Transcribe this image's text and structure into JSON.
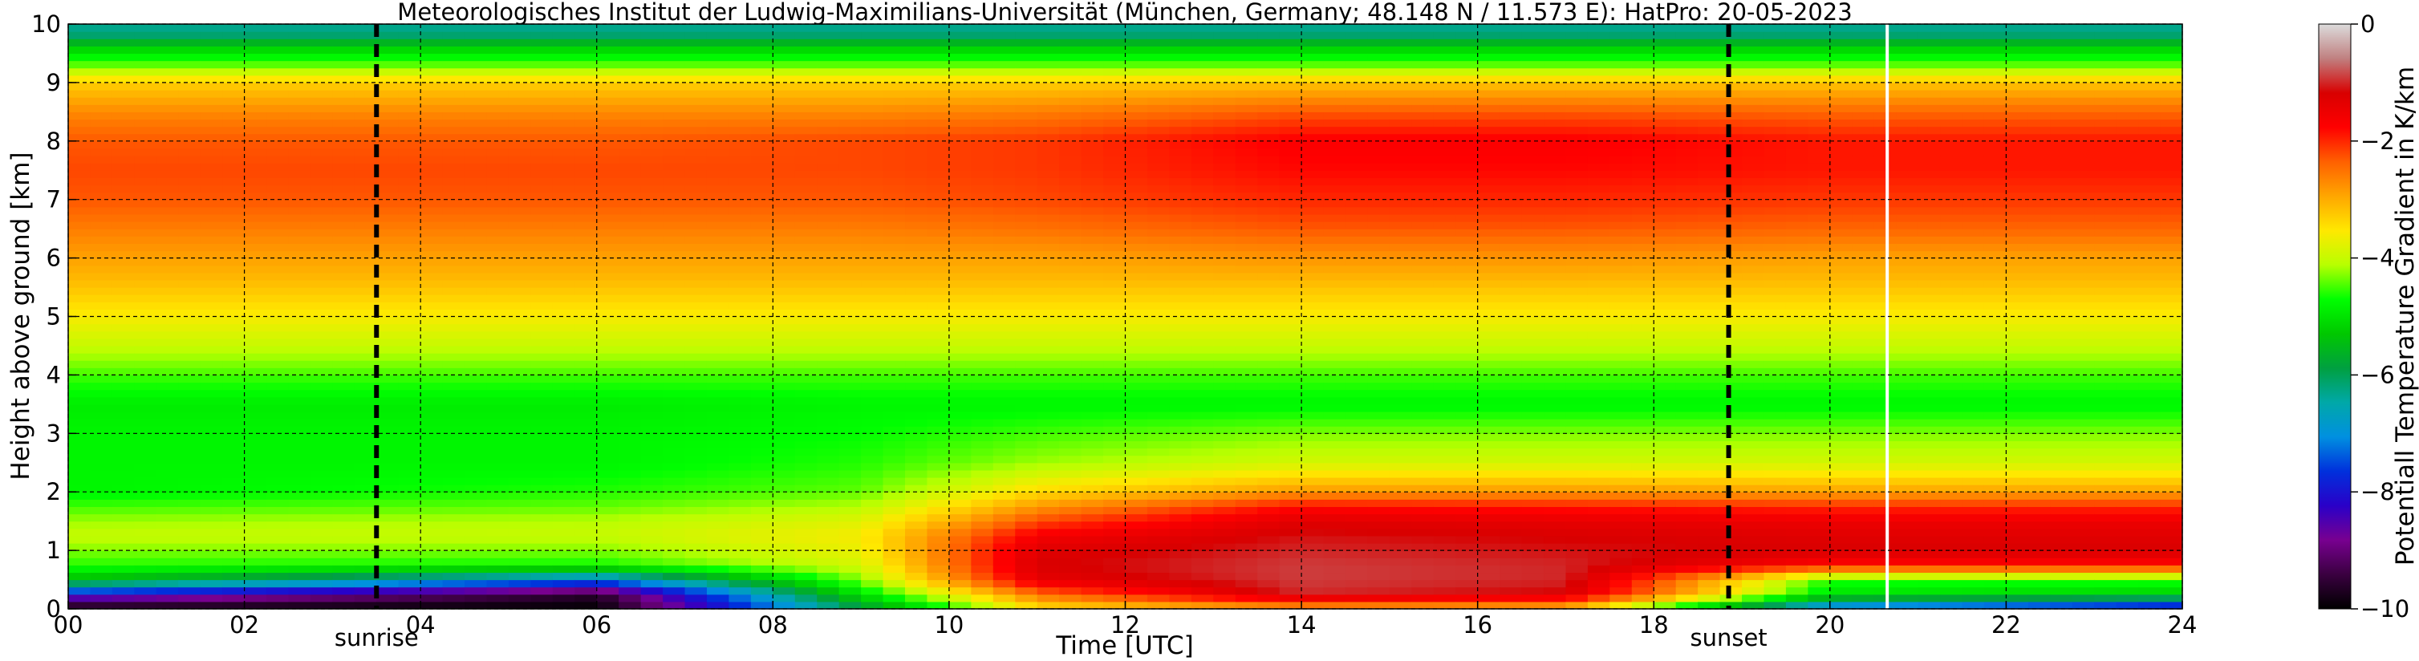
{
  "chart_data": {
    "type": "heatmap",
    "title": "Meteorologisches Institut der Ludwig-Maximilians-Universität (München, Germany; 48.148 N / 11.573 E):    HatPro: 20-05-2023",
    "xlabel": "Time [UTC]",
    "ylabel": "Height above ground [km]",
    "xlim": [
      0,
      24
    ],
    "ylim": [
      0,
      10
    ],
    "x_ticks": [
      0,
      2,
      4,
      6,
      8,
      10,
      12,
      14,
      16,
      18,
      20,
      22,
      24
    ],
    "x_tick_labels": [
      "00",
      "02",
      "04",
      "06",
      "08",
      "10",
      "12",
      "14",
      "16",
      "18",
      "20",
      "22",
      "24"
    ],
    "y_ticks": [
      0,
      1,
      2,
      3,
      4,
      5,
      6,
      7,
      8,
      9,
      10
    ],
    "y_tick_labels": [
      "0",
      "1",
      "2",
      "3",
      "4",
      "5",
      "6",
      "7",
      "8",
      "9",
      "10"
    ],
    "grid": true,
    "colorbar": {
      "label": "Potentiall Temperature Gradient in K/km",
      "range": [
        -10,
        0
      ],
      "ticks": [
        0,
        -2,
        -4,
        -6,
        -8,
        -10
      ],
      "tick_labels": [
        "0",
        "−2",
        "−4",
        "−6",
        "−8",
        "−10"
      ],
      "colors": [
        "#000000",
        "#3a0040",
        "#780090",
        "#2a00c8",
        "#0030dc",
        "#0090e0",
        "#00a8a8",
        "#00a040",
        "#00c800",
        "#00ff00",
        "#b8ff00",
        "#ffe800",
        "#ffa600",
        "#ff6000",
        "#ff0000",
        "#d80000",
        "#c08080",
        "#dcdcdc"
      ]
    },
    "events": [
      {
        "label": "sunrise",
        "time": 3.5
      },
      {
        "label": "sunset",
        "time": 18.85
      }
    ],
    "gap_time": 20.65,
    "profile_heights": [
      0,
      0.25,
      0.5,
      0.75,
      1.0,
      1.25,
      1.5,
      1.75,
      2.0,
      2.5,
      3.0,
      3.5,
      4.0,
      4.5,
      5.0,
      5.5,
      6.0,
      6.5,
      7.0,
      7.5,
      8.0,
      8.5,
      9.0,
      9.3,
      9.6,
      9.85,
      10.0
    ],
    "profiles": [
      {
        "time": 0,
        "values": [
          -10,
          -8,
          -5.4,
          -4.6,
          -4.3,
          -4.0,
          -4.2,
          -4.5,
          -4.8,
          -4.8,
          -4.8,
          -4.9,
          -4.5,
          -4.0,
          -3.6,
          -3.2,
          -2.9,
          -2.6,
          -2.3,
          -2.2,
          -2.3,
          -2.7,
          -3.3,
          -4.4,
          -5.2,
          -6.3,
          -6.3
        ]
      },
      {
        "time": 6,
        "values": [
          -10,
          -9.6,
          -7.2,
          -4.7,
          -4.3,
          -4.0,
          -4.1,
          -4.4,
          -4.6,
          -4.8,
          -4.8,
          -4.9,
          -4.5,
          -4.0,
          -3.6,
          -3.2,
          -2.9,
          -2.6,
          -2.3,
          -2.2,
          -2.3,
          -2.7,
          -3.3,
          -4.4,
          -5.2,
          -6.3,
          -6.3
        ]
      },
      {
        "time": 9,
        "values": [
          -6.0,
          -5.0,
          -4.3,
          -3.9,
          -3.7,
          -3.6,
          -3.8,
          -4.1,
          -4.4,
          -4.6,
          -4.7,
          -4.8,
          -4.5,
          -4.0,
          -3.6,
          -3.2,
          -2.9,
          -2.6,
          -2.3,
          -2.2,
          -2.2,
          -2.7,
          -3.3,
          -4.4,
          -5.2,
          -6.3,
          -6.3
        ]
      },
      {
        "time": 11,
        "values": [
          -3.5,
          -2.5,
          -1.4,
          -1.2,
          -1.3,
          -1.6,
          -2.2,
          -2.8,
          -3.4,
          -4.2,
          -4.5,
          -4.8,
          -4.5,
          -4.0,
          -3.6,
          -3.2,
          -2.9,
          -2.5,
          -2.2,
          -2.1,
          -2.1,
          -2.6,
          -3.3,
          -4.4,
          -5.2,
          -6.3,
          -6.3
        ]
      },
      {
        "time": 14,
        "values": [
          -3.0,
          -1.0,
          -0.9,
          -0.9,
          -1.0,
          -1.1,
          -1.3,
          -1.8,
          -2.8,
          -3.9,
          -4.3,
          -4.8,
          -4.5,
          -4.0,
          -3.6,
          -3.2,
          -2.8,
          -2.3,
          -2.0,
          -1.8,
          -1.7,
          -2.3,
          -3.2,
          -4.4,
          -5.2,
          -6.3,
          -6.3
        ]
      },
      {
        "time": 17,
        "values": [
          -3.2,
          -1.2,
          -1.0,
          -1.0,
          -1.1,
          -1.2,
          -1.4,
          -1.9,
          -2.8,
          -3.9,
          -4.3,
          -4.8,
          -4.5,
          -4.0,
          -3.6,
          -3.2,
          -2.8,
          -2.3,
          -2.0,
          -1.8,
          -1.7,
          -2.3,
          -3.2,
          -4.4,
          -5.2,
          -6.3,
          -6.3
        ]
      },
      {
        "time": 20,
        "values": [
          -7.5,
          -5.0,
          -4.6,
          -1.8,
          -1.2,
          -1.3,
          -1.5,
          -2.0,
          -2.9,
          -3.9,
          -4.3,
          -4.8,
          -4.5,
          -4.0,
          -3.6,
          -3.2,
          -2.9,
          -2.4,
          -2.1,
          -1.9,
          -1.9,
          -2.4,
          -3.2,
          -4.4,
          -5.2,
          -6.3,
          -6.3
        ]
      },
      {
        "time": 24,
        "values": [
          -8.5,
          -5.2,
          -4.6,
          -1.8,
          -1.2,
          -1.3,
          -1.5,
          -2.0,
          -2.9,
          -3.9,
          -4.3,
          -4.8,
          -4.5,
          -4.0,
          -3.6,
          -3.2,
          -2.9,
          -2.4,
          -2.1,
          -1.9,
          -1.9,
          -2.4,
          -3.2,
          -4.4,
          -5.2,
          -6.3,
          -6.3
        ]
      }
    ]
  }
}
